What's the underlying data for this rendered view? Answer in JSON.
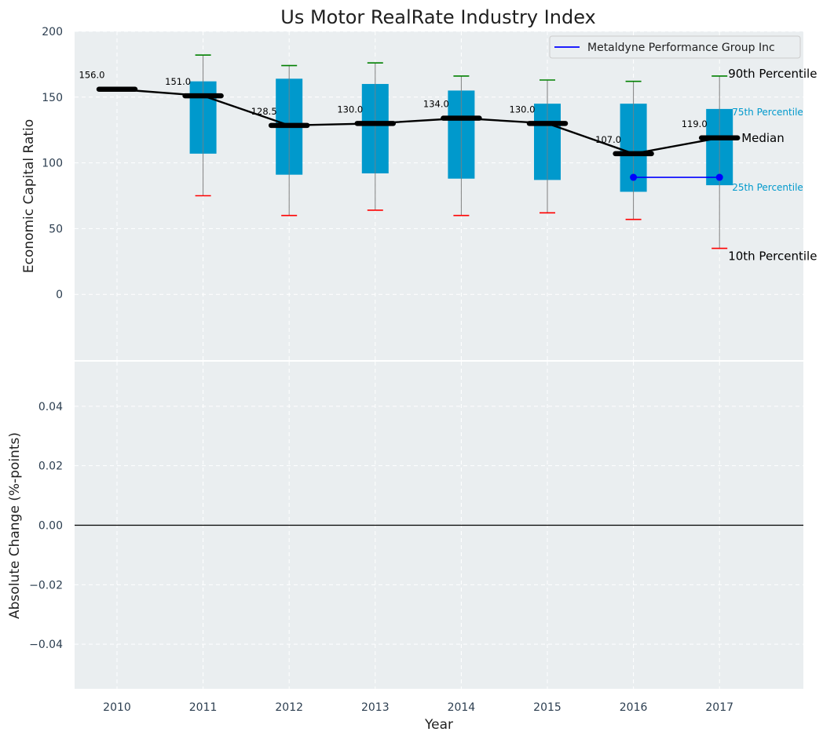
{
  "chart_data": [
    {
      "type": "box",
      "title": "Us Motor RealRate Industry Index",
      "ylabel": "Economic Capital Ratio",
      "ylim": [
        -50,
        200
      ],
      "yticks": [
        0,
        50,
        100,
        150,
        200
      ],
      "categories": [
        "2010",
        "2011",
        "2012",
        "2013",
        "2014",
        "2015",
        "2016",
        "2017"
      ],
      "p10": [
        null,
        75,
        60,
        64,
        60,
        62,
        57,
        35
      ],
      "p25": [
        null,
        107,
        91,
        92,
        88,
        87,
        78,
        83
      ],
      "median": [
        156.0,
        151.0,
        128.5,
        130.0,
        134.0,
        130.0,
        107.0,
        119.0
      ],
      "p75": [
        null,
        162,
        164,
        160,
        155,
        145,
        145,
        141
      ],
      "p90": [
        null,
        182,
        174,
        176,
        166,
        163,
        162,
        166
      ],
      "median_labels": [
        "156.0",
        "151.0",
        "128.5",
        "130.0",
        "134.0",
        "130.0",
        "107.0",
        "119.0"
      ],
      "company_series": {
        "name": "Metaldyne Performance Group Inc",
        "color": "#0000ff",
        "x": [
          "2016",
          "2017"
        ],
        "values": [
          89,
          89
        ]
      },
      "annotations": {
        "p90": "90th Percentile",
        "p75": "75th Percentile",
        "median": "Median",
        "p25": "25th Percentile",
        "p10": "10th Percentile"
      },
      "legend": {
        "position": "top-right"
      },
      "grid": true,
      "colors": {
        "box": "#0099cc",
        "median": "#000000",
        "p90_cap": "#008000",
        "p10_cap": "#ff0000",
        "whisker": "#808080",
        "background": "#eaeef0",
        "pct_annot": "#0099cc"
      }
    },
    {
      "type": "line",
      "ylabel": "Absolute Change (%-points)",
      "xlabel": "Year",
      "ylim": [
        -0.055,
        0.055
      ],
      "yticks": [
        "−0.04",
        "−0.02",
        "0.00",
        "0.02",
        "0.04"
      ],
      "ytick_values": [
        -0.04,
        -0.02,
        0.0,
        0.02,
        0.04
      ],
      "categories": [
        "2010",
        "2011",
        "2012",
        "2013",
        "2014",
        "2015",
        "2016",
        "2017"
      ],
      "series": [],
      "zero_line": true,
      "grid": true
    }
  ]
}
